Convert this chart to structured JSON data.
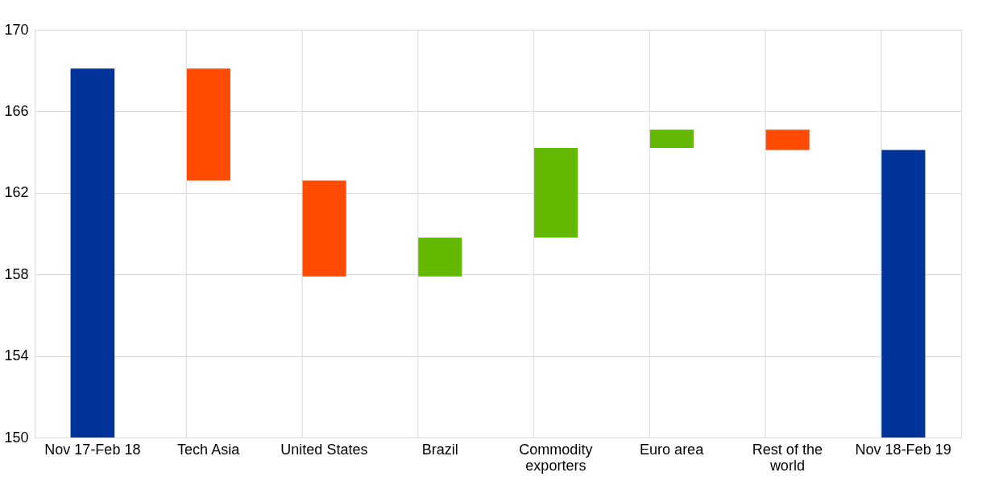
{
  "chart_data": {
    "type": "bar",
    "categories": [
      "Nov 17-Feb 18",
      "Tech Asia",
      "United States",
      "Brazil",
      "Commodity exporters",
      "Euro area",
      "Rest of the world",
      "Nov 18-Feb 19"
    ],
    "values": [
      18.1,
      -5.5,
      -4.7,
      1.9,
      4.4,
      0.9,
      -1.0,
      14.1
    ],
    "base": [
      150,
      168.1,
      162.6,
      157.9,
      159.8,
      164.2,
      165.1,
      150
    ],
    "colors": [
      "#003399",
      "#ff4b00",
      "#ff4b00",
      "#65b800",
      "#65b800",
      "#65b800",
      "#ff4b00",
      "#003399"
    ],
    "ylim": [
      150,
      170
    ],
    "yticks": [
      150,
      154,
      158,
      162,
      166,
      170
    ],
    "grid": true
  }
}
